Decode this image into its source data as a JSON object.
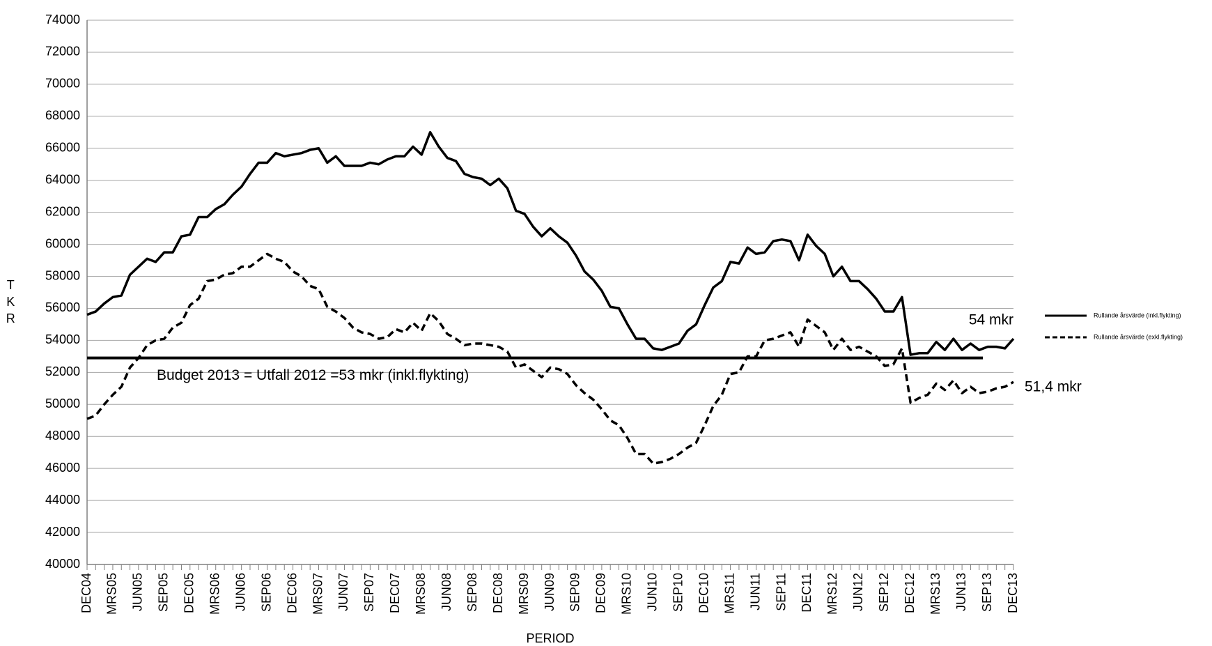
{
  "chart_data": {
    "type": "line",
    "ylabel": "TKR",
    "xlabel": "PERIOD",
    "categories": [
      "DEC04",
      null,
      null,
      "MRS05",
      null,
      null,
      "JUN05",
      null,
      null,
      "SEP05",
      null,
      null,
      "DEC05",
      null,
      null,
      "MRS06",
      null,
      null,
      "JUN06",
      null,
      null,
      "SEP06",
      null,
      null,
      "DEC06",
      null,
      null,
      "MRS07",
      null,
      null,
      "JUN07",
      null,
      null,
      "SEP07",
      null,
      null,
      "DEC07",
      null,
      null,
      "MRS08",
      null,
      null,
      "JUN08",
      null,
      null,
      "SEP08",
      null,
      null,
      "DEC08",
      null,
      null,
      "MRS09",
      null,
      null,
      "JUN09",
      null,
      null,
      "SEP09",
      null,
      null,
      "DEC09",
      null,
      null,
      "MRS10",
      null,
      null,
      "JUN10",
      null,
      null,
      "SEP10",
      null,
      null,
      "DEC10",
      null,
      null,
      "MRS11",
      null,
      null,
      "JUN11",
      null,
      null,
      "SEP11",
      null,
      null,
      "DEC11",
      null,
      null,
      "MRS12",
      null,
      null,
      "JUN12",
      null,
      null,
      "SEP12",
      null,
      null,
      "DEC12",
      null,
      null,
      "MRS13",
      null,
      null,
      "JUN13",
      null,
      null,
      "SEP13",
      null,
      null,
      "DEC13"
    ],
    "series": [
      {
        "name": "Rullande årsvärde (inkl.flykting)",
        "color": "#000000",
        "line_style": "solid",
        "values": [
          55600,
          55800,
          56300,
          56700,
          56800,
          58100,
          58600,
          59100,
          58900,
          59500,
          59500,
          60500,
          60600,
          61700,
          61700,
          62200,
          62500,
          63100,
          63600,
          64400,
          65100,
          65100,
          65700,
          65500,
          65600,
          65700,
          65900,
          66000,
          65100,
          65500,
          64900,
          64900,
          64900,
          65100,
          65000,
          65300,
          65500,
          65500,
          66100,
          65600,
          67000,
          66100,
          65400,
          65200,
          64400,
          64200,
          64100,
          63700,
          64100,
          63500,
          62100,
          61900,
          61100,
          60500,
          61000,
          60500,
          60100,
          59300,
          58300,
          57800,
          57100,
          56100,
          56000,
          55000,
          54100,
          54100,
          53500,
          53400,
          53600,
          53800,
          54600,
          55000,
          56200,
          57300,
          57700,
          58900,
          58800,
          59800,
          59400,
          59500,
          60200,
          60300,
          60200,
          59000,
          60600,
          59900,
          59400,
          58000,
          58600,
          57700,
          57700,
          57200,
          56600,
          55800,
          55800,
          56700,
          53100,
          53200,
          53200,
          53900,
          53400,
          54100,
          53400,
          53800,
          53400,
          53600,
          53600,
          53500,
          54100
        ]
      },
      {
        "name": "Rullande årsvärde (exkl.flykting)",
        "color": "#000000",
        "line_style": "dashed",
        "values": [
          49100,
          49300,
          50000,
          50600,
          51100,
          52300,
          52900,
          53700,
          54000,
          54100,
          54800,
          55100,
          56200,
          56600,
          57700,
          57800,
          58100,
          58200,
          58600,
          58600,
          59000,
          59400,
          59100,
          58900,
          58300,
          58000,
          57400,
          57200,
          56100,
          55800,
          55400,
          54800,
          54500,
          54400,
          54100,
          54200,
          54700,
          54500,
          55100,
          54600,
          55700,
          55200,
          54400,
          54100,
          53700,
          53800,
          53800,
          53700,
          53600,
          53300,
          52300,
          52500,
          52100,
          51700,
          52300,
          52200,
          51900,
          51200,
          50700,
          50300,
          49700,
          49000,
          48700,
          47900,
          46900,
          46900,
          46300,
          46400,
          46600,
          46900,
          47300,
          47600,
          48700,
          49900,
          50600,
          51900,
          52000,
          53000,
          53000,
          54000,
          54100,
          54300,
          54500,
          53600,
          55300,
          54900,
          54500,
          53400,
          54100,
          53400,
          53600,
          53300,
          53000,
          52400,
          52500,
          53500,
          50100,
          50400,
          50600,
          51300,
          50900,
          51500,
          50700,
          51100,
          50700,
          50800,
          51000,
          51100,
          51400
        ]
      }
    ],
    "reference_line": {
      "value": 52900,
      "label": "Budget 2013 = Utfall 2012 =53 mkr (inkl.flykting)",
      "color": "#000000"
    },
    "annotations": [
      "54 mkr",
      "51,4 mkr"
    ],
    "ylim": [
      40000,
      74000
    ],
    "yticks": [
      40000,
      42000,
      44000,
      46000,
      48000,
      50000,
      52000,
      54000,
      56000,
      58000,
      60000,
      62000,
      64000,
      66000,
      68000,
      70000,
      72000,
      74000
    ],
    "grid": true,
    "legend": "right"
  }
}
